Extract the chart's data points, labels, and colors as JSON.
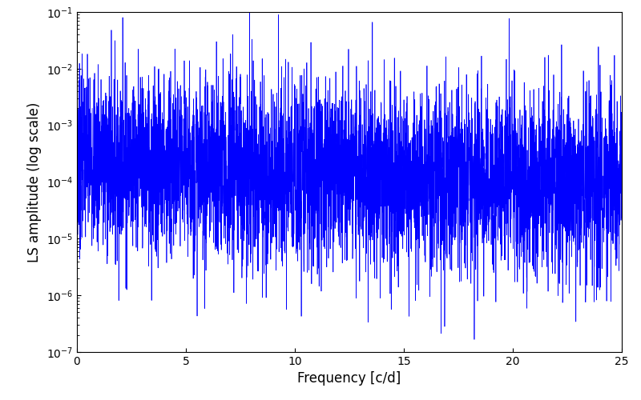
{
  "title": "",
  "xlabel": "Frequency [c/d]",
  "ylabel": "LS amplitude (log scale)",
  "line_color": "#0000ff",
  "line_width": 0.5,
  "xlim": [
    0,
    25
  ],
  "ylim_log": [
    -7,
    -1
  ],
  "freq_min": 0.0,
  "freq_max": 25.0,
  "n_points": 5000,
  "seed": 7,
  "background_color": "#ffffff",
  "figsize": [
    8.0,
    5.0
  ],
  "dpi": 100,
  "yticks": [
    1e-07,
    1e-06,
    1e-05,
    0.0001,
    0.001,
    0.01,
    0.1
  ],
  "xticks": [
    0,
    5,
    10,
    15,
    20,
    25
  ]
}
